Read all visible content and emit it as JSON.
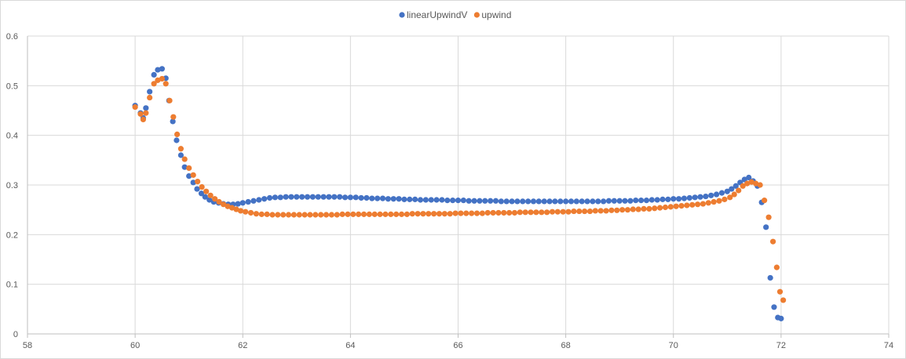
{
  "chart_data": {
    "type": "scatter",
    "title": "",
    "xlabel": "",
    "ylabel": "",
    "xlim": [
      58,
      74
    ],
    "ylim": [
      0,
      0.6
    ],
    "x_ticks": [
      "58",
      "60",
      "62",
      "64",
      "66",
      "68",
      "70",
      "72",
      "74"
    ],
    "y_ticks": [
      "0",
      "0.1",
      "0.2",
      "0.3",
      "0.4",
      "0.5",
      "0.6"
    ],
    "grid": true,
    "legend_position": "top-center",
    "series": [
      {
        "name": "linearUpwindV",
        "color": "#4472c4",
        "points": [
          [
            60.0,
            0.46
          ],
          [
            60.1,
            0.445
          ],
          [
            60.15,
            0.435
          ],
          [
            60.2,
            0.455
          ],
          [
            60.27,
            0.488
          ],
          [
            60.35,
            0.522
          ],
          [
            60.42,
            0.532
          ],
          [
            60.5,
            0.534
          ],
          [
            60.57,
            0.515
          ],
          [
            60.63,
            0.47
          ],
          [
            60.7,
            0.428
          ],
          [
            60.77,
            0.39
          ],
          [
            60.85,
            0.36
          ],
          [
            60.92,
            0.336
          ],
          [
            61.0,
            0.318
          ],
          [
            61.08,
            0.305
          ],
          [
            61.15,
            0.292
          ],
          [
            61.23,
            0.283
          ],
          [
            61.3,
            0.276
          ],
          [
            61.38,
            0.27
          ],
          [
            61.46,
            0.266
          ],
          [
            61.55,
            0.264
          ],
          [
            61.64,
            0.262
          ],
          [
            61.73,
            0.261
          ],
          [
            61.82,
            0.261
          ],
          [
            61.91,
            0.262
          ],
          [
            62.0,
            0.264
          ],
          [
            62.1,
            0.266
          ],
          [
            62.2,
            0.268
          ],
          [
            62.3,
            0.27
          ],
          [
            62.4,
            0.272
          ],
          [
            62.5,
            0.274
          ],
          [
            62.6,
            0.275
          ],
          [
            62.7,
            0.275
          ],
          [
            62.8,
            0.276
          ],
          [
            62.9,
            0.276
          ],
          [
            63.0,
            0.276
          ],
          [
            63.1,
            0.276
          ],
          [
            63.2,
            0.276
          ],
          [
            63.3,
            0.276
          ],
          [
            63.4,
            0.276
          ],
          [
            63.5,
            0.276
          ],
          [
            63.6,
            0.276
          ],
          [
            63.7,
            0.276
          ],
          [
            63.8,
            0.276
          ],
          [
            63.9,
            0.275
          ],
          [
            64.0,
            0.275
          ],
          [
            64.1,
            0.275
          ],
          [
            64.2,
            0.274
          ],
          [
            64.3,
            0.274
          ],
          [
            64.4,
            0.273
          ],
          [
            64.5,
            0.273
          ],
          [
            64.6,
            0.273
          ],
          [
            64.7,
            0.272
          ],
          [
            64.8,
            0.272
          ],
          [
            64.9,
            0.272
          ],
          [
            65.0,
            0.271
          ],
          [
            65.1,
            0.271
          ],
          [
            65.2,
            0.271
          ],
          [
            65.3,
            0.27
          ],
          [
            65.4,
            0.27
          ],
          [
            65.5,
            0.27
          ],
          [
            65.6,
            0.27
          ],
          [
            65.7,
            0.27
          ],
          [
            65.8,
            0.269
          ],
          [
            65.9,
            0.269
          ],
          [
            66.0,
            0.269
          ],
          [
            66.1,
            0.269
          ],
          [
            66.2,
            0.268
          ],
          [
            66.3,
            0.268
          ],
          [
            66.4,
            0.268
          ],
          [
            66.5,
            0.268
          ],
          [
            66.6,
            0.268
          ],
          [
            66.7,
            0.268
          ],
          [
            66.8,
            0.267
          ],
          [
            66.9,
            0.267
          ],
          [
            67.0,
            0.267
          ],
          [
            67.1,
            0.267
          ],
          [
            67.2,
            0.267
          ],
          [
            67.3,
            0.267
          ],
          [
            67.4,
            0.267
          ],
          [
            67.5,
            0.267
          ],
          [
            67.6,
            0.267
          ],
          [
            67.7,
            0.267
          ],
          [
            67.8,
            0.267
          ],
          [
            67.9,
            0.267
          ],
          [
            68.0,
            0.267
          ],
          [
            68.1,
            0.267
          ],
          [
            68.2,
            0.267
          ],
          [
            68.3,
            0.267
          ],
          [
            68.4,
            0.267
          ],
          [
            68.5,
            0.267
          ],
          [
            68.6,
            0.267
          ],
          [
            68.7,
            0.267
          ],
          [
            68.8,
            0.268
          ],
          [
            68.9,
            0.268
          ],
          [
            69.0,
            0.268
          ],
          [
            69.1,
            0.268
          ],
          [
            69.2,
            0.268
          ],
          [
            69.3,
            0.269
          ],
          [
            69.4,
            0.269
          ],
          [
            69.5,
            0.269
          ],
          [
            69.6,
            0.27
          ],
          [
            69.7,
            0.27
          ],
          [
            69.8,
            0.271
          ],
          [
            69.9,
            0.271
          ],
          [
            70.0,
            0.272
          ],
          [
            70.1,
            0.272
          ],
          [
            70.2,
            0.273
          ],
          [
            70.3,
            0.274
          ],
          [
            70.4,
            0.275
          ],
          [
            70.5,
            0.276
          ],
          [
            70.6,
            0.277
          ],
          [
            70.7,
            0.279
          ],
          [
            70.8,
            0.281
          ],
          [
            70.9,
            0.284
          ],
          [
            71.0,
            0.287
          ],
          [
            71.08,
            0.292
          ],
          [
            71.16,
            0.298
          ],
          [
            71.24,
            0.305
          ],
          [
            71.32,
            0.311
          ],
          [
            71.4,
            0.315
          ],
          [
            71.48,
            0.308
          ],
          [
            71.56,
            0.298
          ],
          [
            71.64,
            0.265
          ],
          [
            71.72,
            0.215
          ],
          [
            71.8,
            0.113
          ],
          [
            71.87,
            0.054
          ],
          [
            71.94,
            0.033
          ],
          [
            72.0,
            0.031
          ]
        ]
      },
      {
        "name": "upwind",
        "color": "#ed7d31",
        "points": [
          [
            60.0,
            0.457
          ],
          [
            60.1,
            0.443
          ],
          [
            60.15,
            0.432
          ],
          [
            60.2,
            0.445
          ],
          [
            60.27,
            0.476
          ],
          [
            60.35,
            0.504
          ],
          [
            60.42,
            0.511
          ],
          [
            60.5,
            0.514
          ],
          [
            60.57,
            0.504
          ],
          [
            60.64,
            0.47
          ],
          [
            60.71,
            0.437
          ],
          [
            60.78,
            0.402
          ],
          [
            60.85,
            0.373
          ],
          [
            60.92,
            0.352
          ],
          [
            61.0,
            0.334
          ],
          [
            61.08,
            0.32
          ],
          [
            61.16,
            0.307
          ],
          [
            61.24,
            0.296
          ],
          [
            61.32,
            0.287
          ],
          [
            61.4,
            0.279
          ],
          [
            61.48,
            0.272
          ],
          [
            61.56,
            0.266
          ],
          [
            61.64,
            0.261
          ],
          [
            61.72,
            0.257
          ],
          [
            61.8,
            0.254
          ],
          [
            61.88,
            0.251
          ],
          [
            61.96,
            0.248
          ],
          [
            62.05,
            0.246
          ],
          [
            62.15,
            0.244
          ],
          [
            62.25,
            0.242
          ],
          [
            62.35,
            0.241
          ],
          [
            62.45,
            0.241
          ],
          [
            62.55,
            0.24
          ],
          [
            62.65,
            0.24
          ],
          [
            62.75,
            0.24
          ],
          [
            62.85,
            0.24
          ],
          [
            62.95,
            0.24
          ],
          [
            63.05,
            0.24
          ],
          [
            63.15,
            0.24
          ],
          [
            63.25,
            0.24
          ],
          [
            63.35,
            0.24
          ],
          [
            63.45,
            0.24
          ],
          [
            63.55,
            0.24
          ],
          [
            63.65,
            0.24
          ],
          [
            63.75,
            0.24
          ],
          [
            63.85,
            0.241
          ],
          [
            63.95,
            0.241
          ],
          [
            64.05,
            0.241
          ],
          [
            64.15,
            0.241
          ],
          [
            64.25,
            0.241
          ],
          [
            64.35,
            0.241
          ],
          [
            64.45,
            0.241
          ],
          [
            64.55,
            0.241
          ],
          [
            64.65,
            0.241
          ],
          [
            64.75,
            0.241
          ],
          [
            64.85,
            0.241
          ],
          [
            64.95,
            0.241
          ],
          [
            65.05,
            0.241
          ],
          [
            65.15,
            0.242
          ],
          [
            65.25,
            0.242
          ],
          [
            65.35,
            0.242
          ],
          [
            65.45,
            0.242
          ],
          [
            65.55,
            0.242
          ],
          [
            65.65,
            0.242
          ],
          [
            65.75,
            0.242
          ],
          [
            65.85,
            0.242
          ],
          [
            65.95,
            0.243
          ],
          [
            66.05,
            0.243
          ],
          [
            66.15,
            0.243
          ],
          [
            66.25,
            0.243
          ],
          [
            66.35,
            0.243
          ],
          [
            66.45,
            0.243
          ],
          [
            66.55,
            0.244
          ],
          [
            66.65,
            0.244
          ],
          [
            66.75,
            0.244
          ],
          [
            66.85,
            0.244
          ],
          [
            66.95,
            0.244
          ],
          [
            67.05,
            0.244
          ],
          [
            67.15,
            0.245
          ],
          [
            67.25,
            0.245
          ],
          [
            67.35,
            0.245
          ],
          [
            67.45,
            0.245
          ],
          [
            67.55,
            0.245
          ],
          [
            67.65,
            0.245
          ],
          [
            67.75,
            0.246
          ],
          [
            67.85,
            0.246
          ],
          [
            67.95,
            0.246
          ],
          [
            68.05,
            0.246
          ],
          [
            68.15,
            0.247
          ],
          [
            68.25,
            0.247
          ],
          [
            68.35,
            0.247
          ],
          [
            68.45,
            0.247
          ],
          [
            68.55,
            0.248
          ],
          [
            68.65,
            0.248
          ],
          [
            68.75,
            0.248
          ],
          [
            68.85,
            0.249
          ],
          [
            68.95,
            0.249
          ],
          [
            69.05,
            0.25
          ],
          [
            69.15,
            0.25
          ],
          [
            69.25,
            0.251
          ],
          [
            69.35,
            0.251
          ],
          [
            69.45,
            0.252
          ],
          [
            69.55,
            0.252
          ],
          [
            69.65,
            0.253
          ],
          [
            69.75,
            0.254
          ],
          [
            69.85,
            0.255
          ],
          [
            69.95,
            0.256
          ],
          [
            70.05,
            0.257
          ],
          [
            70.15,
            0.258
          ],
          [
            70.25,
            0.259
          ],
          [
            70.35,
            0.26
          ],
          [
            70.45,
            0.261
          ],
          [
            70.55,
            0.262
          ],
          [
            70.65,
            0.264
          ],
          [
            70.75,
            0.266
          ],
          [
            70.85,
            0.268
          ],
          [
            70.95,
            0.271
          ],
          [
            71.05,
            0.275
          ],
          [
            71.13,
            0.281
          ],
          [
            71.21,
            0.289
          ],
          [
            71.29,
            0.298
          ],
          [
            71.37,
            0.303
          ],
          [
            71.45,
            0.306
          ],
          [
            71.53,
            0.303
          ],
          [
            71.61,
            0.3
          ],
          [
            71.69,
            0.269
          ],
          [
            71.77,
            0.235
          ],
          [
            71.85,
            0.186
          ],
          [
            71.92,
            0.134
          ],
          [
            71.98,
            0.085
          ],
          [
            72.04,
            0.068
          ]
        ]
      }
    ]
  }
}
